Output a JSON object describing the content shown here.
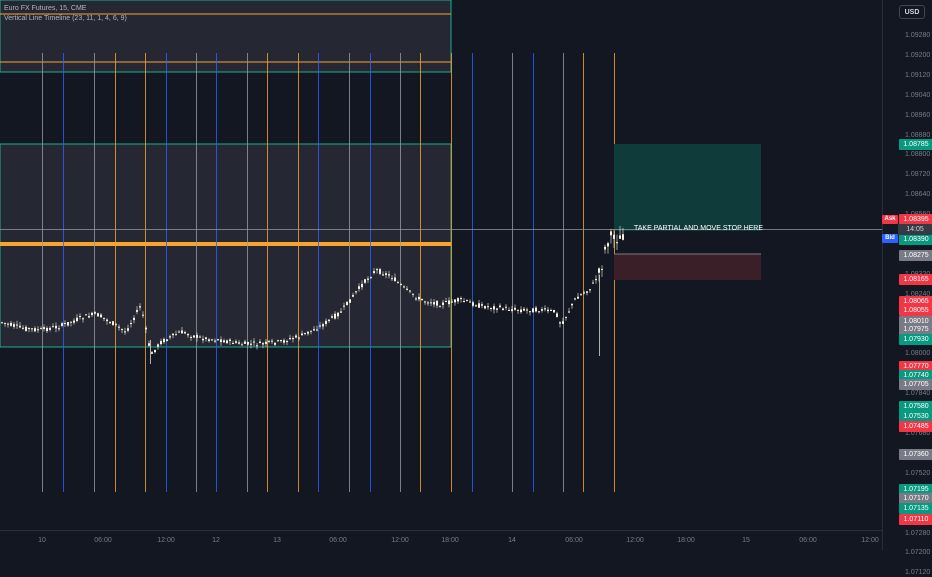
{
  "legend": {
    "symbol": "Euro FX Futures, 15, CME",
    "indicator": "Vertical Line Timeline (23, 11, 1, 4, 6, 9)"
  },
  "currency_button": "USD",
  "annotation": "TAKE PARTIAL AND MOVE STOP HERE",
  "ask_label": "Ask",
  "bid_label": "Bid",
  "countdown": "14:05",
  "price_ticks": [
    "1.09280",
    "1.09200",
    "1.09120",
    "1.09040",
    "1.08960",
    "1.08880",
    "1.08800",
    "1.08720",
    "1.08640",
    "1.08560",
    "1.08480",
    "1.08400",
    "1.08320",
    "1.08240",
    "1.08160",
    "1.08080",
    "1.08000",
    "1.07920",
    "1.07840",
    "1.07760",
    "1.07680",
    "1.07600",
    "1.07520",
    "1.07440",
    "1.07360",
    "1.07280",
    "1.07200",
    "1.07120"
  ],
  "price_tags": [
    {
      "text": "1.08785",
      "color": "#089981"
    },
    {
      "text": "1.08395",
      "color": "#f23645"
    },
    {
      "text": "1.08390",
      "color": "#089981"
    },
    {
      "text": "1.08275",
      "color": "#787b86"
    },
    {
      "text": "1.08165",
      "color": "#f23645"
    },
    {
      "text": "1.08065",
      "color": "#f23645"
    },
    {
      "text": "1.08055",
      "color": "#f23645"
    },
    {
      "text": "1.08010",
      "color": "#787b86"
    },
    {
      "text": "1.07975",
      "color": "#787b86"
    },
    {
      "text": "1.07930",
      "color": "#089981"
    },
    {
      "text": "1.07770",
      "color": "#f23645"
    },
    {
      "text": "1.07740",
      "color": "#089981"
    },
    {
      "text": "1.07705",
      "color": "#787b86"
    },
    {
      "text": "1.07580",
      "color": "#089981"
    },
    {
      "text": "1.07530",
      "color": "#089981"
    },
    {
      "text": "1.07485",
      "color": "#f23645"
    },
    {
      "text": "1.07360",
      "color": "#787b86"
    },
    {
      "text": "1.07195",
      "color": "#089981"
    },
    {
      "text": "1.07170",
      "color": "#787b86"
    },
    {
      "text": "1.07135",
      "color": "#089981"
    },
    {
      "text": "1.07110",
      "color": "#f23645"
    }
  ],
  "time_ticks": [
    "10",
    "06:00",
    "12:00",
    "12",
    "13",
    "06:00",
    "12:00",
    "18:00",
    "14",
    "06:00",
    "12:00",
    "18:00",
    "15",
    "06:00",
    "12:00"
  ],
  "colors": {
    "background": "#131722",
    "candle_up": "#f5f0e0",
    "candle_down": "#f5f0e0",
    "orange": "#f7a530",
    "teal": "#22ab94",
    "target_zone": "#0f3b3a",
    "stop_zone": "#3b1f28"
  }
}
